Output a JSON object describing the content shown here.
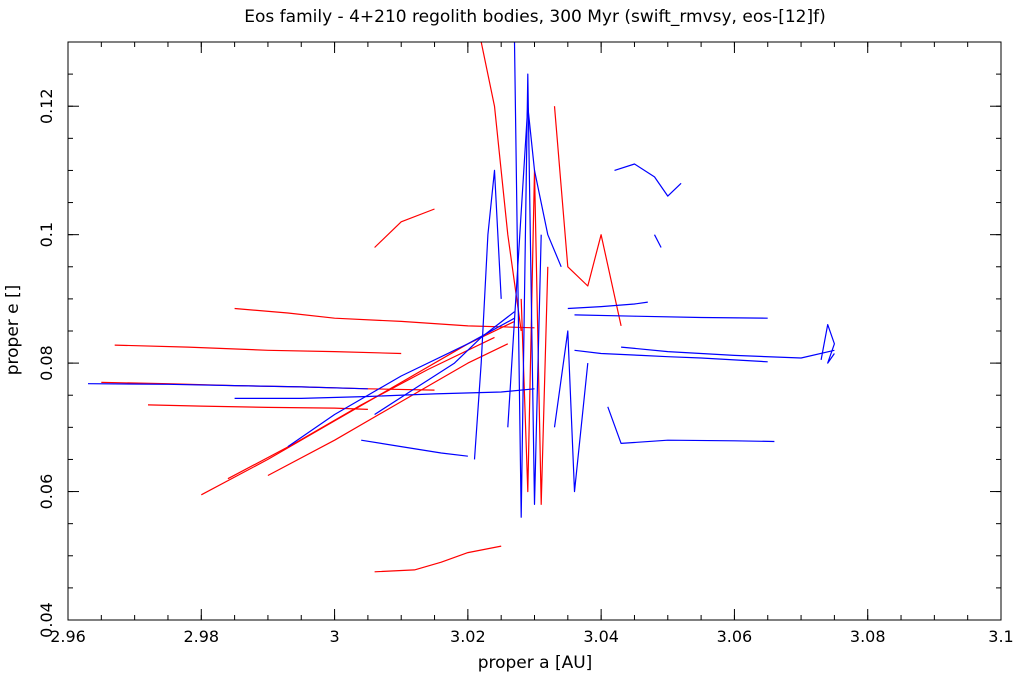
{
  "chart_data": {
    "type": "line",
    "title": "Eos family - 4+210 regolith bodies, 300 Myr (swift_rmvsy, eos-[12]f)",
    "xlabel": "proper a [AU]",
    "ylabel": "proper e []",
    "xlim": [
      2.96,
      3.1
    ],
    "ylim": [
      0.04,
      0.13
    ],
    "grid": false,
    "legend": "none",
    "x_ticks": [
      2.96,
      2.98,
      3.0,
      3.02,
      3.04,
      3.06,
      3.08,
      3.1
    ],
    "x_tick_labels": [
      "2.96",
      "2.98",
      "3",
      "3.02",
      "3.04",
      "3.06",
      "3.08",
      "3.1"
    ],
    "y_ticks": [
      0.04,
      0.06,
      0.08,
      0.1,
      0.12
    ],
    "y_tick_labels": [
      "0.04",
      "0.06",
      "0.08",
      "0.1",
      "0.12"
    ],
    "colors": {
      "red": "#ff0000",
      "blue": "#0000ff",
      "axes": "#000000"
    },
    "series": [
      {
        "color": "#ff0000",
        "x": [
          2.965,
          2.975,
          2.985,
          2.995,
          3.005,
          3.015
        ],
        "y": [
          0.077,
          0.0768,
          0.0765,
          0.0763,
          0.076,
          0.0758
        ]
      },
      {
        "color": "#ff0000",
        "x": [
          2.967,
          2.978,
          2.99,
          3.0,
          3.01
        ],
        "y": [
          0.0828,
          0.0825,
          0.082,
          0.0818,
          0.0815
        ]
      },
      {
        "color": "#ff0000",
        "x": [
          2.972,
          2.98,
          2.99,
          3.0,
          3.005
        ],
        "y": [
          0.0735,
          0.0733,
          0.0731,
          0.073,
          0.0728
        ]
      },
      {
        "color": "#ff0000",
        "x": [
          2.985,
          2.993,
          3.0,
          3.01,
          3.02,
          3.03
        ],
        "y": [
          0.0885,
          0.0878,
          0.087,
          0.0865,
          0.0858,
          0.0855
        ]
      },
      {
        "color": "#ff0000",
        "x": [
          2.98,
          2.99,
          3.0,
          3.01,
          3.02,
          3.027
        ],
        "y": [
          0.0595,
          0.065,
          0.071,
          0.077,
          0.083,
          0.0865
        ]
      },
      {
        "color": "#ff0000",
        "x": [
          2.984,
          2.994,
          3.004,
          3.014,
          3.024
        ],
        "y": [
          0.062,
          0.0675,
          0.0735,
          0.079,
          0.084
        ]
      },
      {
        "color": "#ff0000",
        "x": [
          2.99,
          3.0,
          3.01,
          3.02,
          3.026
        ],
        "y": [
          0.0625,
          0.068,
          0.074,
          0.08,
          0.083
        ]
      },
      {
        "color": "#ff0000",
        "x": [
          3.006,
          3.01,
          3.015
        ],
        "y": [
          0.098,
          0.102,
          0.104
        ]
      },
      {
        "color": "#ff0000",
        "x": [
          3.006,
          3.012,
          3.016,
          3.02,
          3.025
        ],
        "y": [
          0.0475,
          0.0478,
          0.049,
          0.0505,
          0.0515
        ]
      },
      {
        "color": "#ff0000",
        "x": [
          3.022,
          3.024,
          3.026,
          3.028
        ],
        "y": [
          0.13,
          0.12,
          0.1,
          0.085
        ]
      },
      {
        "color": "#ff0000",
        "x": [
          3.028,
          3.029,
          3.03,
          3.031,
          3.032
        ],
        "y": [
          0.09,
          0.06,
          0.11,
          0.058,
          0.095
        ]
      },
      {
        "color": "#ff0000",
        "x": [
          3.033,
          3.035,
          3.038,
          3.04,
          3.043
        ],
        "y": [
          0.12,
          0.095,
          0.092,
          0.1,
          0.0858
        ]
      },
      {
        "color": "#0000ff",
        "x": [
          2.963,
          2.975,
          2.985,
          2.995,
          3.005
        ],
        "y": [
          0.0768,
          0.0767,
          0.0765,
          0.0763,
          0.076
        ]
      },
      {
        "color": "#0000ff",
        "x": [
          2.985,
          2.995,
          3.005,
          3.015,
          3.025,
          3.03
        ],
        "y": [
          0.0745,
          0.0745,
          0.0748,
          0.0752,
          0.0755,
          0.076
        ]
      },
      {
        "color": "#0000ff",
        "x": [
          2.993,
          3.0,
          3.01,
          3.02,
          3.027
        ],
        "y": [
          0.067,
          0.072,
          0.078,
          0.083,
          0.087
        ]
      },
      {
        "color": "#0000ff",
        "x": [
          3.004,
          3.01,
          3.016,
          3.02
        ],
        "y": [
          0.068,
          0.067,
          0.066,
          0.0655
        ]
      },
      {
        "color": "#0000ff",
        "x": [
          3.006,
          3.012,
          3.018,
          3.022,
          3.027
        ],
        "y": [
          0.072,
          0.076,
          0.08,
          0.084,
          0.088
        ]
      },
      {
        "color": "#0000ff",
        "x": [
          3.021,
          3.022,
          3.023,
          3.024,
          3.025
        ],
        "y": [
          0.065,
          0.08,
          0.1,
          0.11,
          0.09
        ]
      },
      {
        "color": "#0000ff",
        "x": [
          3.027,
          3.028,
          3.029,
          3.03,
          3.031
        ],
        "y": [
          0.13,
          0.056,
          0.125,
          0.058,
          0.1
        ]
      },
      {
        "color": "#0000ff",
        "x": [
          3.026,
          3.029,
          3.03,
          3.032,
          3.034
        ],
        "y": [
          0.07,
          0.12,
          0.11,
          0.1,
          0.095
        ]
      },
      {
        "color": "#0000ff",
        "x": [
          3.033,
          3.035,
          3.036,
          3.038
        ],
        "y": [
          0.07,
          0.085,
          0.06,
          0.08
        ]
      },
      {
        "color": "#0000ff",
        "x": [
          3.035,
          3.04,
          3.045,
          3.047
        ],
        "y": [
          0.0885,
          0.0888,
          0.0892,
          0.0895
        ]
      },
      {
        "color": "#0000ff",
        "x": [
          3.036,
          3.045,
          3.055,
          3.065
        ],
        "y": [
          0.0875,
          0.0873,
          0.0871,
          0.087
        ]
      },
      {
        "color": "#0000ff",
        "x": [
          3.041,
          3.043,
          3.05,
          3.06,
          3.066
        ],
        "y": [
          0.0732,
          0.0675,
          0.068,
          0.0679,
          0.0678
        ]
      },
      {
        "color": "#0000ff",
        "x": [
          3.043,
          3.05,
          3.06,
          3.07,
          3.075
        ],
        "y": [
          0.0825,
          0.0818,
          0.0812,
          0.0808,
          0.082
        ]
      },
      {
        "color": "#0000ff",
        "x": [
          3.073,
          3.074,
          3.075,
          3.074,
          3.075
        ],
        "y": [
          0.0805,
          0.086,
          0.083,
          0.08,
          0.0815
        ]
      },
      {
        "color": "#0000ff",
        "x": [
          3.042,
          3.045,
          3.048,
          3.05,
          3.052
        ],
        "y": [
          0.11,
          0.111,
          0.109,
          0.106,
          0.108
        ]
      },
      {
        "color": "#0000ff",
        "x": [
          3.048,
          3.049
        ],
        "y": [
          0.1,
          0.098
        ]
      },
      {
        "color": "#0000ff",
        "x": [
          3.036,
          3.04,
          3.046,
          3.05,
          3.055,
          3.065
        ],
        "y": [
          0.082,
          0.0815,
          0.0812,
          0.081,
          0.0808,
          0.0802
        ]
      }
    ]
  }
}
